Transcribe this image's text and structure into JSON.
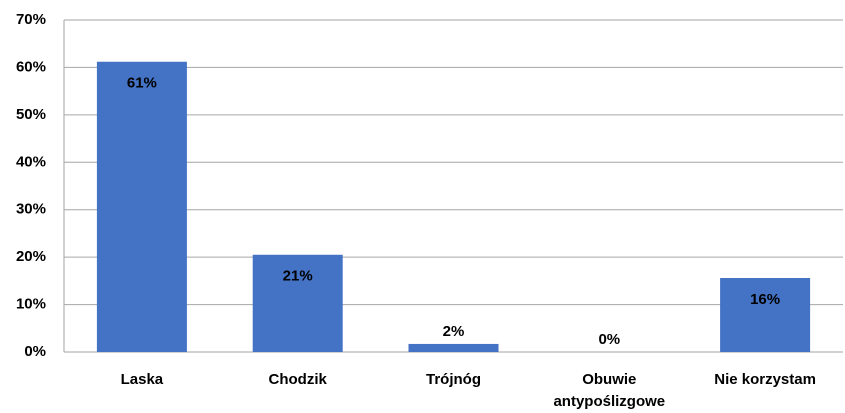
{
  "chart_data": {
    "type": "bar",
    "categories": [
      "Laska",
      "Chodzik",
      "Trójnóg",
      "Obuwie antypoślizgowe",
      "Nie korzystam"
    ],
    "values": [
      61.2,
      20.5,
      1.7,
      0,
      15.6
    ],
    "value_labels": [
      "61%",
      "21%",
      "2%",
      "0%",
      "16%"
    ],
    "color": "#4472c4",
    "ylim": [
      0,
      70
    ],
    "yticks": [
      {
        "value": 0,
        "label": "0%"
      },
      {
        "value": 10,
        "label": "10%"
      },
      {
        "value": 20,
        "label": "20%"
      },
      {
        "value": 30,
        "label": "30%"
      },
      {
        "value": 40,
        "label": "40%"
      },
      {
        "value": 50,
        "label": "50%"
      },
      {
        "value": 60,
        "label": "60%"
      },
      {
        "value": 70,
        "label": "70%"
      }
    ],
    "grid": true
  }
}
